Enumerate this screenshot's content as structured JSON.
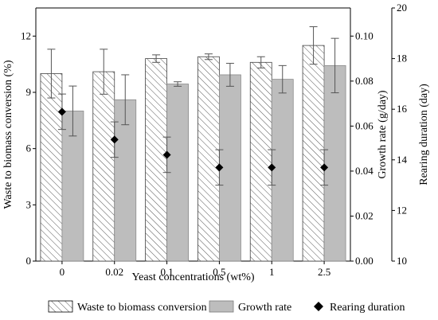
{
  "chart_data": {
    "type": "bar",
    "categories": [
      "0",
      "0.02",
      "0.1",
      "0.5",
      "1",
      "2.5"
    ],
    "xlabel": "Yeast concentrations (wt%)",
    "axes": {
      "left": {
        "label": "Waste to biomass conversion (%)",
        "ylim": [
          0,
          13.5
        ],
        "ticks": [
          "0",
          "3",
          "6",
          "9",
          "12"
        ]
      },
      "right1": {
        "label": "Growth rate (g/day)",
        "ylim": [
          0,
          0.1125
        ],
        "ticks": [
          "0.00",
          "0.02",
          "0.04",
          "0.06",
          "0.08",
          "0.10"
        ]
      },
      "right2": {
        "label": "Rearing duration (day)",
        "ylim": [
          10,
          20
        ],
        "ticks": [
          "10",
          "12",
          "14",
          "16",
          "18",
          "20"
        ]
      }
    },
    "series": [
      {
        "name": "Waste to biomass conversion",
        "axis": "left",
        "style": "hatched-bar",
        "values": [
          10.0,
          10.1,
          10.8,
          10.9,
          10.6,
          11.5
        ],
        "errors": [
          1.3,
          1.2,
          0.2,
          0.15,
          0.3,
          1.0
        ]
      },
      {
        "name": "Growth rate",
        "axis": "right1",
        "style": "gray-bar",
        "values": [
          0.0667,
          0.0717,
          0.0787,
          0.0828,
          0.0808,
          0.0869
        ],
        "errors": [
          0.0111,
          0.0111,
          0.001,
          0.0051,
          0.0061,
          0.0121
        ]
      },
      {
        "name": "Rearing duration",
        "axis": "right2",
        "style": "diamond",
        "values": [
          15.9,
          14.8,
          14.2,
          13.7,
          13.7,
          13.7
        ],
        "errors": [
          0.7,
          0.7,
          0.7,
          0.7,
          0.7,
          0.7
        ]
      }
    ],
    "colors": {
      "growth_bar": "#bdbdbd",
      "hatch": "#555555",
      "marker": "#000000"
    }
  }
}
